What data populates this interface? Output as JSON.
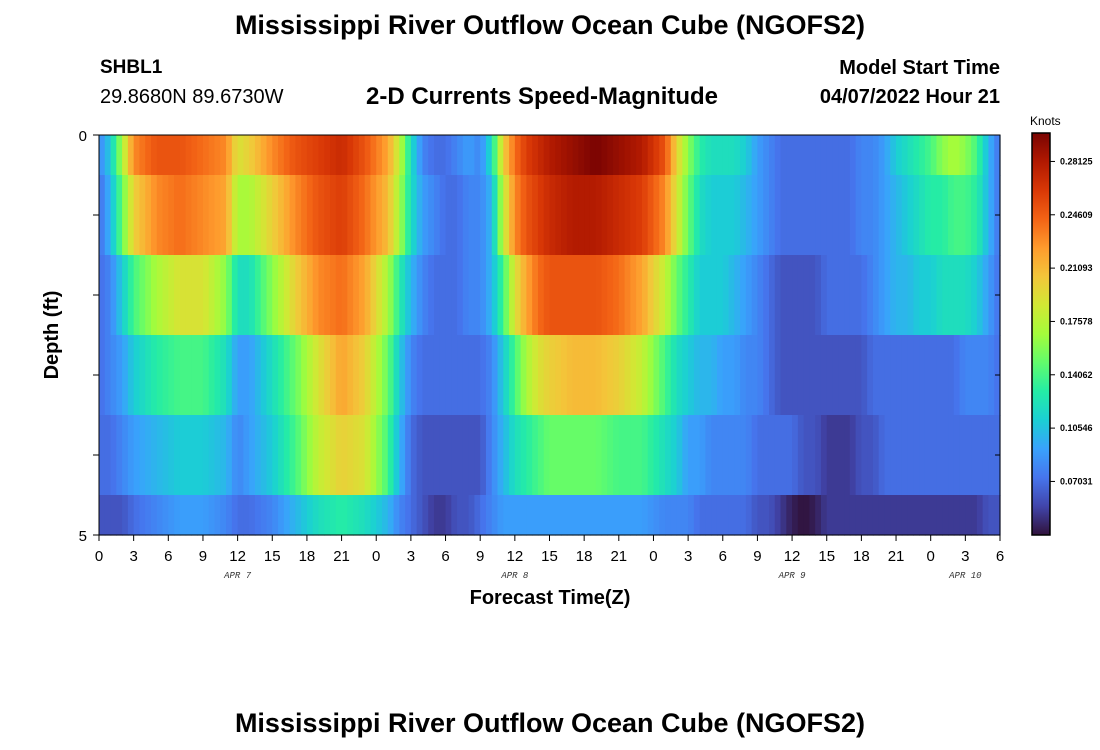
{
  "header": {
    "title": "Mississippi River Outflow Ocean Cube (NGOFS2)",
    "station_id": "SHBL1",
    "station_coords": "29.8680N  89.6730W",
    "subtitle": "2-D Currents Speed-Magnitude",
    "model_start_label": "Model Start Time",
    "model_start_value": "04/07/2022 Hour 21"
  },
  "footer": {
    "title": "Mississippi River Outflow Ocean Cube (NGOFS2)"
  },
  "chart_data": {
    "type": "heatmap",
    "xlabel": "Forecast Time(Z)",
    "ylabel": "Depth (ft)",
    "x_hours": [
      0,
      3,
      6,
      9,
      12,
      15,
      18,
      21,
      24,
      27,
      30,
      33,
      36,
      39,
      42,
      45,
      48,
      51,
      54,
      57,
      60,
      63,
      66,
      69,
      72,
      75,
      78
    ],
    "x_tick_labels": [
      "0",
      "3",
      "6",
      "9",
      "12",
      "15",
      "18",
      "21",
      "0",
      "3",
      "6",
      "9",
      "12",
      "15",
      "18",
      "21",
      "0",
      "3",
      "6",
      "9",
      "12",
      "15",
      "18",
      "21",
      "0",
      "3",
      "6"
    ],
    "date_labels": [
      {
        "text": "APR 7",
        "hour": 12
      },
      {
        "text": "APR 8",
        "hour": 36
      },
      {
        "text": "APR 9",
        "hour": 60
      },
      {
        "text": "APR 10",
        "hour": 75
      }
    ],
    "ylim": [
      0,
      5
    ],
    "y_tick_labels": [
      "0",
      "5"
    ],
    "row_boundaries_ft": [
      0,
      0.5,
      1.5,
      2.5,
      3.5,
      4.5,
      5
    ],
    "colorbar": {
      "unit": "Knots",
      "min": 0.035,
      "max": 0.3,
      "tick_values": [
        0.28125,
        0.24609,
        0.21093,
        0.17578,
        0.14062,
        0.10546,
        0.07031
      ],
      "tick_labels": [
        "0.28125",
        "0.24609",
        "0.21093",
        "0.17578",
        "0.14062",
        "0.10546",
        "0.07031"
      ],
      "colors": [
        "#30123b",
        "#4145ab",
        "#4675ed",
        "#39a2fc",
        "#1bcfd4",
        "#24eca6",
        "#61fc6c",
        "#a4fc3b",
        "#d1e834",
        "#f3c63a",
        "#fe9b2d",
        "#f36315",
        "#d93806",
        "#b11901",
        "#7a0402"
      ]
    },
    "layers": [
      {
        "hours": [
          0,
          1,
          2,
          3,
          5,
          7,
          9,
          11,
          12,
          13,
          15,
          17,
          19,
          21,
          23,
          25,
          26,
          27,
          28,
          29,
          30,
          31,
          32,
          33,
          34,
          35,
          36,
          37,
          38,
          39,
          41,
          43,
          45,
          47,
          49,
          50,
          51,
          52,
          53,
          54,
          55,
          56,
          57,
          58,
          59,
          60,
          61,
          62,
          63,
          64,
          65,
          66,
          67,
          68,
          69,
          70,
          71,
          72,
          73,
          74,
          75,
          76,
          77,
          78
        ],
        "values": [
          0.08,
          0.11,
          0.17,
          0.23,
          0.25,
          0.25,
          0.24,
          0.23,
          0.19,
          0.2,
          0.23,
          0.25,
          0.26,
          0.27,
          0.25,
          0.22,
          0.18,
          0.12,
          0.08,
          0.07,
          0.07,
          0.08,
          0.09,
          0.08,
          0.12,
          0.2,
          0.24,
          0.26,
          0.27,
          0.28,
          0.29,
          0.3,
          0.29,
          0.28,
          0.25,
          0.2,
          0.16,
          0.13,
          0.12,
          0.12,
          0.12,
          0.11,
          0.09,
          0.08,
          0.07,
          0.07,
          0.07,
          0.07,
          0.07,
          0.07,
          0.07,
          0.08,
          0.08,
          0.09,
          0.11,
          0.12,
          0.13,
          0.14,
          0.16,
          0.17,
          0.16,
          0.14,
          0.1,
          0.07
        ]
      },
      {
        "hours": [
          0,
          1,
          2,
          3,
          5,
          7,
          9,
          11,
          12,
          13,
          15,
          17,
          19,
          21,
          23,
          25,
          26,
          27,
          28,
          29,
          30,
          31,
          32,
          33,
          34,
          35,
          36,
          37,
          38,
          39,
          41,
          43,
          45,
          47,
          49,
          50,
          51,
          52,
          53,
          54,
          55,
          56,
          57,
          58,
          59,
          60,
          61,
          62,
          63,
          64,
          65,
          66,
          67,
          68,
          69,
          70,
          71,
          72,
          73,
          74,
          75,
          76,
          77,
          78
        ],
        "values": [
          0.07,
          0.1,
          0.15,
          0.2,
          0.23,
          0.24,
          0.23,
          0.22,
          0.17,
          0.17,
          0.2,
          0.23,
          0.25,
          0.26,
          0.24,
          0.21,
          0.17,
          0.12,
          0.09,
          0.08,
          0.07,
          0.07,
          0.08,
          0.08,
          0.1,
          0.18,
          0.23,
          0.25,
          0.26,
          0.27,
          0.28,
          0.28,
          0.27,
          0.26,
          0.23,
          0.19,
          0.15,
          0.12,
          0.11,
          0.11,
          0.11,
          0.1,
          0.09,
          0.08,
          0.07,
          0.07,
          0.07,
          0.07,
          0.07,
          0.07,
          0.07,
          0.08,
          0.08,
          0.09,
          0.1,
          0.11,
          0.12,
          0.13,
          0.13,
          0.14,
          0.14,
          0.13,
          0.1,
          0.07
        ]
      },
      {
        "hours": [
          0,
          1,
          2,
          3,
          5,
          7,
          9,
          11,
          12,
          13,
          15,
          17,
          19,
          21,
          23,
          25,
          26,
          27,
          28,
          29,
          30,
          31,
          32,
          33,
          34,
          35,
          36,
          37,
          38,
          39,
          41,
          43,
          45,
          47,
          49,
          50,
          51,
          52,
          53,
          54,
          55,
          56,
          57,
          58,
          59,
          60,
          61,
          62,
          63,
          64,
          65,
          66,
          67,
          68,
          69,
          70,
          71,
          72,
          73,
          74,
          75,
          76,
          77,
          78
        ],
        "values": [
          0.07,
          0.08,
          0.11,
          0.14,
          0.17,
          0.19,
          0.19,
          0.16,
          0.12,
          0.12,
          0.16,
          0.2,
          0.23,
          0.24,
          0.22,
          0.17,
          0.13,
          0.1,
          0.08,
          0.07,
          0.07,
          0.07,
          0.08,
          0.08,
          0.1,
          0.14,
          0.19,
          0.22,
          0.24,
          0.25,
          0.25,
          0.25,
          0.24,
          0.22,
          0.18,
          0.15,
          0.13,
          0.11,
          0.11,
          0.11,
          0.1,
          0.09,
          0.08,
          0.07,
          0.06,
          0.06,
          0.06,
          0.06,
          0.07,
          0.07,
          0.07,
          0.07,
          0.08,
          0.09,
          0.1,
          0.1,
          0.11,
          0.11,
          0.12,
          0.12,
          0.12,
          0.11,
          0.09,
          0.07
        ]
      },
      {
        "hours": [
          0,
          1,
          2,
          3,
          5,
          7,
          9,
          11,
          12,
          13,
          15,
          17,
          19,
          21,
          23,
          25,
          26,
          27,
          28,
          29,
          30,
          31,
          32,
          33,
          34,
          35,
          36,
          37,
          38,
          39,
          41,
          43,
          45,
          47,
          49,
          50,
          51,
          52,
          53,
          54,
          55,
          56,
          57,
          58,
          59,
          60,
          61,
          62,
          63,
          64,
          65,
          66,
          67,
          68,
          69,
          70,
          71,
          72,
          73,
          74,
          75,
          76,
          77,
          78
        ],
        "values": [
          0.07,
          0.08,
          0.09,
          0.11,
          0.13,
          0.14,
          0.14,
          0.12,
          0.09,
          0.09,
          0.12,
          0.15,
          0.19,
          0.22,
          0.2,
          0.15,
          0.11,
          0.08,
          0.07,
          0.07,
          0.07,
          0.07,
          0.07,
          0.07,
          0.08,
          0.11,
          0.14,
          0.17,
          0.19,
          0.2,
          0.21,
          0.21,
          0.2,
          0.18,
          0.14,
          0.12,
          0.11,
          0.1,
          0.1,
          0.09,
          0.09,
          0.08,
          0.08,
          0.07,
          0.06,
          0.06,
          0.06,
          0.06,
          0.06,
          0.06,
          0.06,
          0.06,
          0.07,
          0.07,
          0.07,
          0.07,
          0.07,
          0.07,
          0.07,
          0.07,
          0.08,
          0.08,
          0.08,
          0.07
        ]
      },
      {
        "hours": [
          0,
          1,
          2,
          3,
          5,
          7,
          9,
          11,
          12,
          13,
          15,
          17,
          19,
          21,
          23,
          25,
          26,
          27,
          28,
          29,
          30,
          31,
          32,
          33,
          34,
          35,
          36,
          37,
          38,
          39,
          41,
          43,
          45,
          47,
          49,
          50,
          51,
          52,
          53,
          54,
          55,
          56,
          57,
          58,
          59,
          60,
          61,
          62,
          63,
          64,
          65,
          66,
          67,
          68,
          69,
          70,
          71,
          72,
          73,
          74,
          75,
          76,
          77,
          78
        ],
        "values": [
          0.07,
          0.07,
          0.08,
          0.09,
          0.1,
          0.11,
          0.11,
          0.1,
          0.08,
          0.09,
          0.11,
          0.14,
          0.18,
          0.2,
          0.19,
          0.14,
          0.1,
          0.07,
          0.06,
          0.06,
          0.06,
          0.06,
          0.06,
          0.06,
          0.08,
          0.1,
          0.12,
          0.13,
          0.14,
          0.15,
          0.15,
          0.15,
          0.14,
          0.14,
          0.12,
          0.11,
          0.09,
          0.09,
          0.08,
          0.08,
          0.08,
          0.08,
          0.07,
          0.07,
          0.07,
          0.07,
          0.06,
          0.06,
          0.05,
          0.05,
          0.05,
          0.06,
          0.06,
          0.07,
          0.07,
          0.07,
          0.07,
          0.07,
          0.07,
          0.07,
          0.07,
          0.07,
          0.07,
          0.07
        ]
      },
      {
        "hours": [
          0,
          1,
          2,
          3,
          5,
          7,
          9,
          11,
          12,
          13,
          15,
          17,
          19,
          21,
          23,
          25,
          26,
          27,
          28,
          29,
          30,
          31,
          32,
          33,
          34,
          35,
          36,
          37,
          38,
          39,
          41,
          43,
          45,
          47,
          49,
          50,
          51,
          52,
          53,
          54,
          55,
          56,
          57,
          58,
          59,
          60,
          61,
          62,
          63,
          64,
          65,
          66,
          67,
          68,
          69,
          70,
          71,
          72,
          73,
          74,
          75,
          76,
          77,
          78
        ],
        "values": [
          0.06,
          0.06,
          0.06,
          0.07,
          0.08,
          0.09,
          0.09,
          0.08,
          0.07,
          0.07,
          0.08,
          0.1,
          0.12,
          0.13,
          0.12,
          0.1,
          0.08,
          0.07,
          0.06,
          0.05,
          0.05,
          0.06,
          0.06,
          0.07,
          0.08,
          0.09,
          0.09,
          0.09,
          0.09,
          0.09,
          0.09,
          0.09,
          0.09,
          0.09,
          0.08,
          0.08,
          0.08,
          0.07,
          0.07,
          0.07,
          0.07,
          0.07,
          0.06,
          0.06,
          0.05,
          0.04,
          0.035,
          0.04,
          0.05,
          0.05,
          0.05,
          0.05,
          0.05,
          0.05,
          0.05,
          0.05,
          0.05,
          0.05,
          0.05,
          0.05,
          0.05,
          0.05,
          0.06,
          0.06
        ]
      }
    ]
  }
}
